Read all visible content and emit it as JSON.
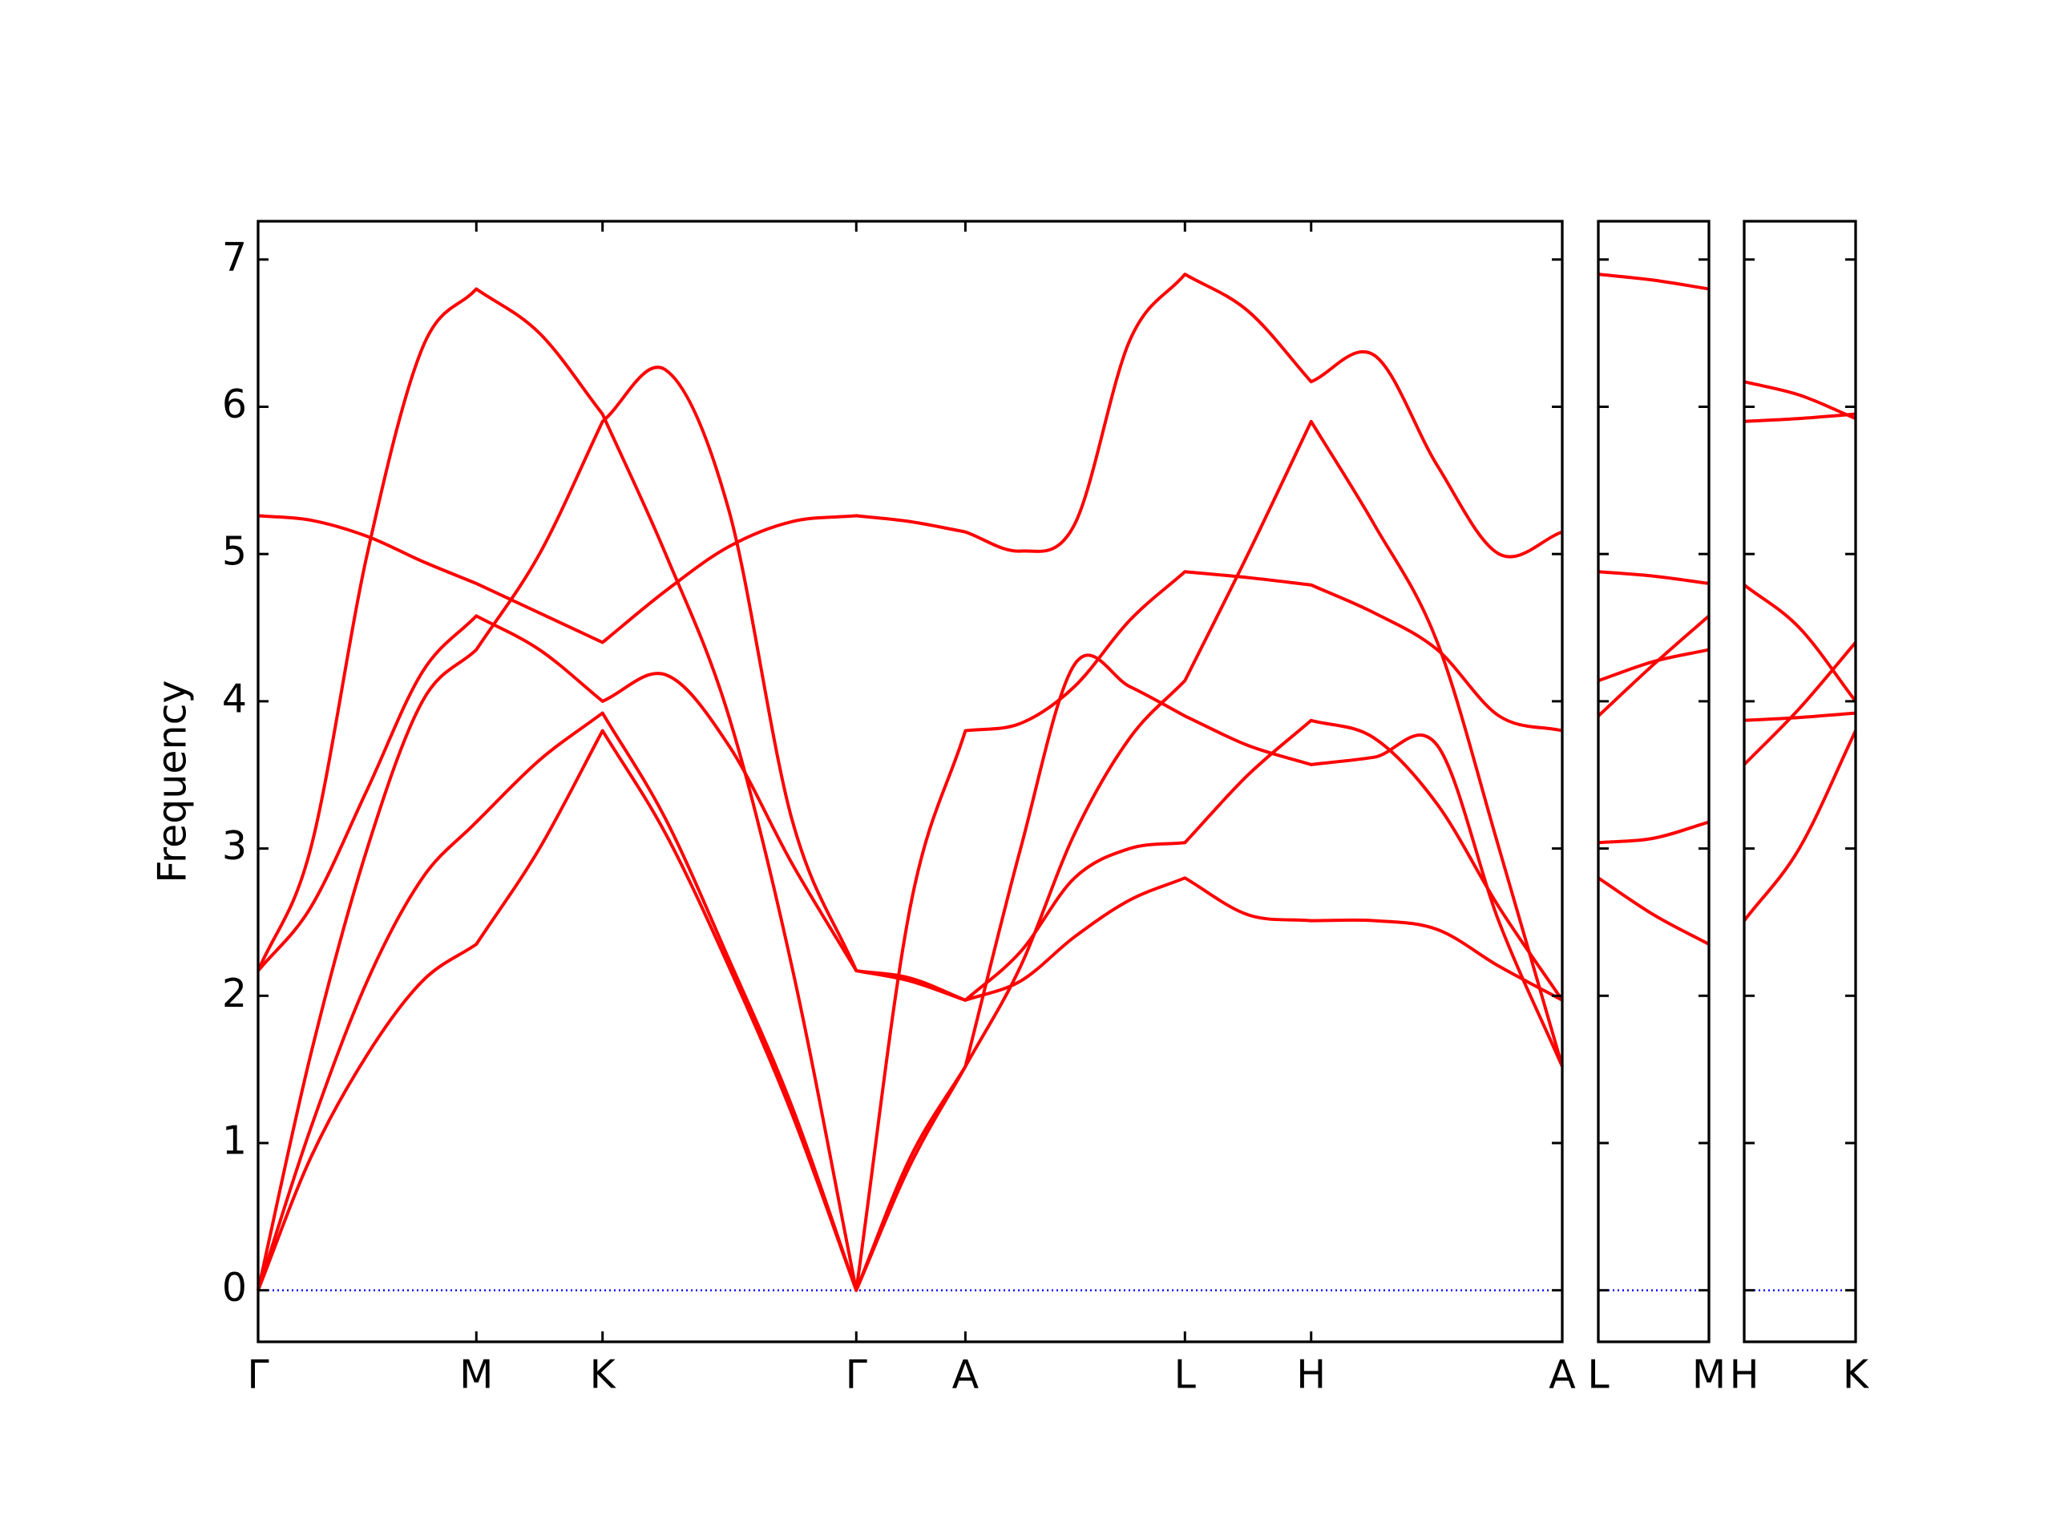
{
  "chart_data": [
    {
      "type": "line",
      "ylabel": "Frequency",
      "ylim": [
        -0.35,
        7.26
      ],
      "yticks": [
        0,
        1,
        2,
        3,
        4,
        5,
        6,
        7
      ],
      "ytick_labels": true,
      "xlim": [
        0,
        992
      ],
      "xticks": [
        {
          "value": 0,
          "label": "Γ"
        },
        {
          "value": 166,
          "label": "M"
        },
        {
          "value": 262,
          "label": "K"
        },
        {
          "value": 455,
          "label": "Γ"
        },
        {
          "value": 538,
          "label": "A"
        },
        {
          "value": 705,
          "label": "L"
        },
        {
          "value": 801,
          "label": "H"
        },
        {
          "value": 992,
          "label": "A"
        }
      ],
      "zero_line": {
        "value": 0,
        "color": "#0000ff"
      },
      "x": [
        0,
        40,
        83,
        125,
        166,
        214,
        262,
        310,
        358,
        406,
        455,
        496,
        538,
        580,
        621,
        663,
        705,
        753,
        801,
        849,
        897,
        944,
        992
      ],
      "series": [
        {
          "color": "#ff0000",
          "values": [
            0,
            0.9,
            1.6,
            2.1,
            2.35,
            3.0,
            3.8,
            3.1,
            2.2,
            1.2,
            0,
            0.9,
            1.52,
            2.2,
            3.1,
            3.75,
            4.14,
            5.0,
            5.9,
            5.2,
            4.4,
            3.0,
            1.52
          ]
        },
        {
          "color": "#ff0000",
          "values": [
            0,
            1.1,
            2.1,
            2.8,
            3.18,
            3.6,
            3.92,
            3.2,
            2.25,
            1.25,
            0,
            0.85,
            1.52,
            3.0,
            4.25,
            4.1,
            3.9,
            3.7,
            3.57,
            3.62,
            3.7,
            2.5,
            1.52
          ]
        },
        {
          "color": "#ff0000",
          "values": [
            0,
            1.6,
            3.0,
            4.0,
            4.35,
            5.0,
            5.9,
            6.25,
            5.3,
            3.2,
            2.17,
            2.12,
            1.97,
            2.1,
            2.4,
            2.65,
            2.8,
            2.55,
            2.51,
            2.51,
            2.45,
            2.2,
            1.97
          ]
        },
        {
          "color": "#ff0000",
          "values": [
            2.17,
            2.6,
            3.4,
            4.2,
            4.58,
            4.35,
            4.0,
            4.18,
            3.7,
            2.9,
            2.17,
            2.1,
            1.97,
            2.3,
            2.8,
            3.0,
            3.04,
            3.5,
            3.87,
            3.75,
            3.3,
            2.6,
            1.97
          ]
        },
        {
          "color": "#ff0000",
          "values": [
            2.17,
            3.0,
            5.0,
            6.4,
            6.8,
            6.5,
            5.95,
            5.0,
            3.9,
            2.2,
            0,
            2.6,
            3.8,
            3.85,
            4.1,
            4.55,
            4.88,
            4.84,
            4.79,
            4.6,
            4.35,
            3.9,
            3.8
          ]
        },
        {
          "color": "#ff0000",
          "values": [
            5.26,
            5.23,
            5.12,
            4.95,
            4.8,
            4.6,
            4.4,
            4.75,
            5.05,
            5.22,
            5.26,
            5.22,
            5.15,
            5.02,
            5.2,
            6.45,
            6.9,
            6.65,
            6.17,
            6.35,
            5.6,
            5.0,
            5.15
          ]
        }
      ]
    },
    {
      "type": "line",
      "ylim": [
        -0.35,
        7.26
      ],
      "yticks": [
        0,
        1,
        2,
        3,
        4,
        5,
        6,
        7
      ],
      "ytick_labels": false,
      "xlim": [
        0,
        84
      ],
      "xticks": [
        {
          "value": 0,
          "label": "L"
        },
        {
          "value": 84,
          "label": "M"
        }
      ],
      "zero_line": {
        "value": 0,
        "color": "#0000ff"
      },
      "x": [
        0,
        42,
        84
      ],
      "series": [
        {
          "color": "#ff0000",
          "values": [
            6.9,
            6.86,
            6.8
          ]
        },
        {
          "color": "#ff0000",
          "values": [
            4.88,
            4.85,
            4.8
          ]
        },
        {
          "color": "#ff0000",
          "values": [
            4.14,
            4.27,
            4.35
          ]
        },
        {
          "color": "#ff0000",
          "values": [
            3.9,
            4.25,
            4.58
          ]
        },
        {
          "color": "#ff0000",
          "values": [
            3.04,
            3.07,
            3.18
          ]
        },
        {
          "color": "#ff0000",
          "values": [
            2.8,
            2.55,
            2.35
          ]
        }
      ]
    },
    {
      "type": "line",
      "ylim": [
        -0.35,
        7.26
      ],
      "yticks": [
        0,
        1,
        2,
        3,
        4,
        5,
        6,
        7
      ],
      "ytick_labels": false,
      "xlim": [
        0,
        85
      ],
      "xticks": [
        {
          "value": 0,
          "label": "H"
        },
        {
          "value": 85,
          "label": "K"
        }
      ],
      "zero_line": {
        "value": 0,
        "color": "#0000ff"
      },
      "x": [
        0,
        42,
        85
      ],
      "series": [
        {
          "color": "#ff0000",
          "values": [
            6.17,
            6.08,
            5.92
          ]
        },
        {
          "color": "#ff0000",
          "values": [
            5.9,
            5.92,
            5.95
          ]
        },
        {
          "color": "#ff0000",
          "values": [
            4.79,
            4.5,
            4.0
          ]
        },
        {
          "color": "#ff0000",
          "values": [
            3.87,
            3.89,
            3.92
          ]
        },
        {
          "color": "#ff0000",
          "values": [
            3.57,
            3.95,
            4.4
          ]
        },
        {
          "color": "#ff0000",
          "values": [
            2.51,
            3.0,
            3.8
          ]
        }
      ]
    }
  ]
}
